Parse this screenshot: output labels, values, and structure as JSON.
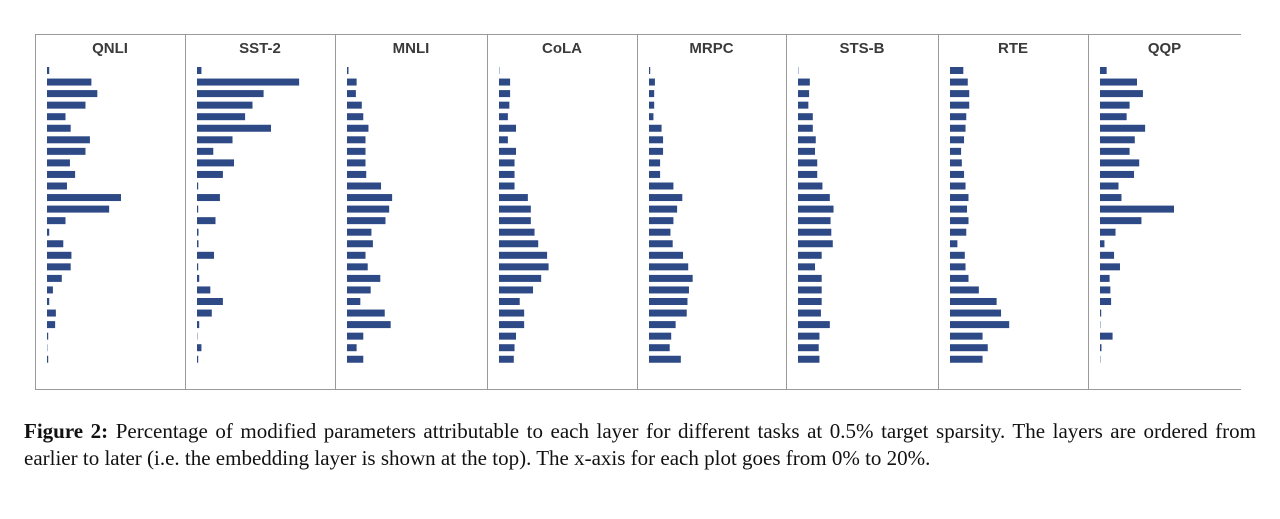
{
  "chart_data": {
    "type": "bar",
    "orientation": "horizontal",
    "layers": 26,
    "xlim": [
      0,
      20
    ],
    "x_unit": "%",
    "panels": [
      {
        "title": "QNLI",
        "values": [
          0.3,
          6,
          6.8,
          5.2,
          2.5,
          3.2,
          5.8,
          5.2,
          3.1,
          3.8,
          2.7,
          10,
          8.4,
          2.5,
          0.3,
          2.2,
          3.3,
          3.2,
          2.0,
          0.8,
          0.3,
          1.2,
          1.1,
          0.1,
          0,
          0.1
        ]
      },
      {
        "title": "SST-2",
        "values": [
          0.6,
          13.8,
          9,
          7.5,
          6.5,
          10,
          4.8,
          2.2,
          5,
          3.5,
          0.1,
          3.1,
          0.1,
          2.5,
          0.2,
          0.2,
          2.3,
          0.1,
          0.3,
          1.8,
          3.5,
          2,
          0.3,
          0,
          0.6,
          0.1
        ]
      },
      {
        "title": "MNLI",
        "values": [
          0.2,
          1.3,
          1.2,
          2,
          2.2,
          2.9,
          2.5,
          2.5,
          2.5,
          2.6,
          4.6,
          6.1,
          5.7,
          5.2,
          3.3,
          3.5,
          2.5,
          2.8,
          4.5,
          3.2,
          1.8,
          5.1,
          5.9,
          2.2,
          1.3,
          2.2
        ]
      },
      {
        "title": "CoLA",
        "values": [
          0,
          1.5,
          1.5,
          1.4,
          1.2,
          2.3,
          1.2,
          2.3,
          2.1,
          2.1,
          2.1,
          3.9,
          4.3,
          4.3,
          4.8,
          5.3,
          6.5,
          6.7,
          5.7,
          4.6,
          2.8,
          3.4,
          3.4,
          2.3,
          2.1,
          2
        ]
      },
      {
        "title": "MRPC",
        "values": [
          0.1,
          0.8,
          0.7,
          0.7,
          0.6,
          1.7,
          1.9,
          1.9,
          1.5,
          1.5,
          3.3,
          4.5,
          3.8,
          3.3,
          2.9,
          3.2,
          4.6,
          5.3,
          5.9,
          5.4,
          5.2,
          5.1,
          3.6,
          3,
          2.8,
          4.3
        ]
      },
      {
        "title": "STS-B",
        "values": [
          0,
          1.6,
          1.5,
          1.4,
          2,
          2,
          2.4,
          2.3,
          2.6,
          2.6,
          3.3,
          4.3,
          4.8,
          4.4,
          4.5,
          4.7,
          3.2,
          2.3,
          3.2,
          3.2,
          3.2,
          3.1,
          4.3,
          2.9,
          2.8,
          2.9
        ]
      },
      {
        "title": "RTE",
        "values": [
          1.8,
          2.4,
          2.6,
          2.6,
          2.2,
          2.1,
          1.9,
          1.5,
          1.6,
          1.9,
          2.1,
          2.5,
          2.3,
          2.5,
          2.2,
          1,
          2,
          2.1,
          2.5,
          3.9,
          6.3,
          6.9,
          8,
          4.4,
          5.1,
          4.4
        ]
      },
      {
        "title": "QQP",
        "values": [
          0.9,
          5,
          5.8,
          4,
          3.6,
          6.1,
          4.7,
          4,
          5.3,
          4.6,
          2.5,
          2.9,
          10,
          5.6,
          2.1,
          0.6,
          1.9,
          2.7,
          1.3,
          1.4,
          1.5,
          0.1,
          0,
          1.7,
          0.2,
          0
        ]
      }
    ]
  },
  "caption": {
    "label": "Figure 2:",
    "text": " Percentage of modified parameters attributable to each layer for different tasks at 0.5% target sparsity. The layers are ordered from earlier to later (i.e. the embedding layer is shown at the top). The x-axis for each plot goes from 0% to 20%."
  },
  "colors": {
    "bar": "#2e4a86",
    "panel_border": "#9a9a9a",
    "title": "#3a3a3a"
  }
}
